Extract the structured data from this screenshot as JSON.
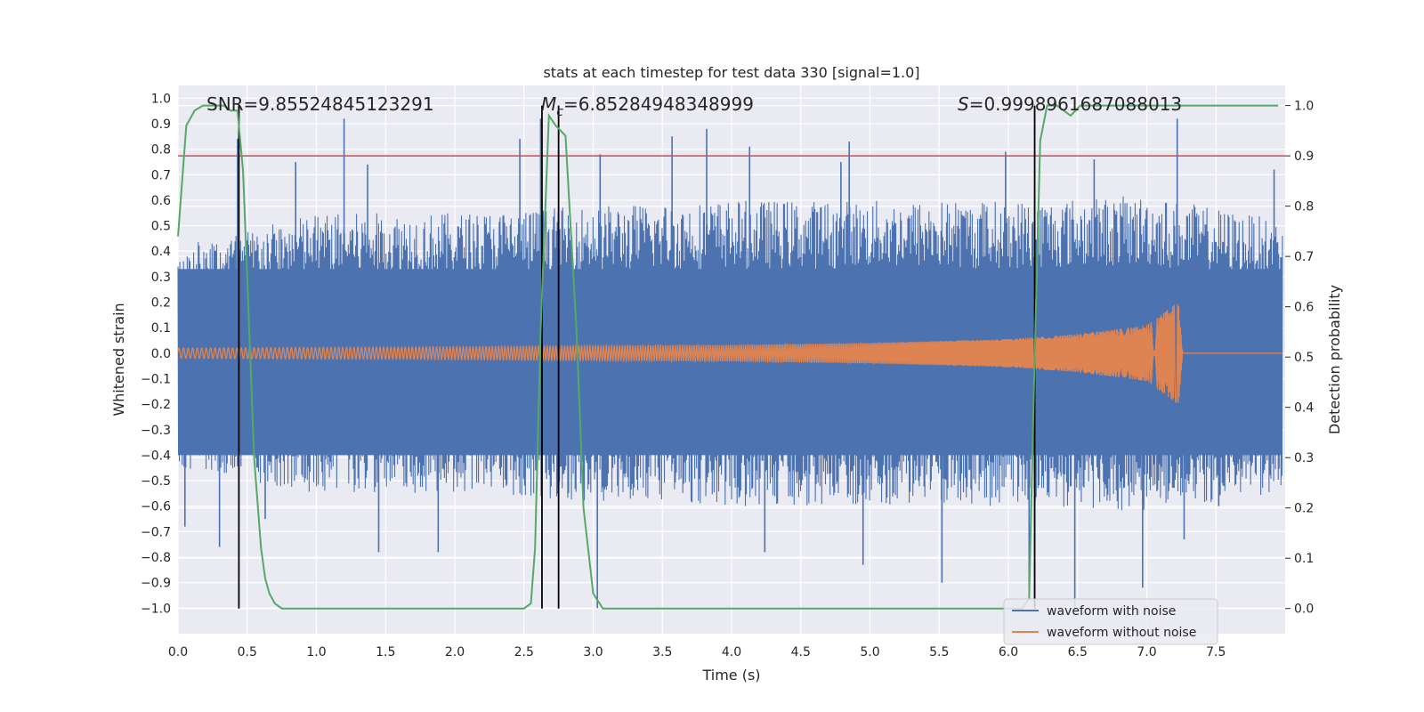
{
  "chart_data": {
    "type": "line",
    "title": "stats at each timestep for test data 330 [signal=1.0]",
    "xlabel": "Time (s)",
    "ylabel": "Whitened strain",
    "y2label": "Detection probability",
    "xlim": [
      0.0,
      8.0
    ],
    "ylim": [
      -1.1,
      1.05
    ],
    "y2lim": [
      -0.05,
      1.04
    ],
    "xticks": [
      0.0,
      0.5,
      1.0,
      1.5,
      2.0,
      2.5,
      3.0,
      3.5,
      4.0,
      4.5,
      5.0,
      5.5,
      6.0,
      6.5,
      7.0,
      7.5
    ],
    "xtick_labels": [
      "0.0",
      "0.5",
      "1.0",
      "1.5",
      "2.0",
      "2.5",
      "3.0",
      "3.5",
      "4.0",
      "4.5",
      "5.0",
      "5.5",
      "6.0",
      "6.5",
      "7.0",
      "7.5"
    ],
    "yticks": [
      -1.0,
      -0.9,
      -0.8,
      -0.7,
      -0.6,
      -0.5,
      -0.4,
      -0.3,
      -0.2,
      -0.1,
      0.0,
      0.1,
      0.2,
      0.3,
      0.4,
      0.5,
      0.6,
      0.7,
      0.8,
      0.9,
      1.0
    ],
    "ytick_labels": [
      "−1.0",
      "−0.9",
      "−0.8",
      "−0.7",
      "−0.6",
      "−0.5",
      "−0.4",
      "−0.3",
      "−0.2",
      "−0.1",
      "0.0",
      "0.1",
      "0.2",
      "0.3",
      "0.4",
      "0.5",
      "0.6",
      "0.7",
      "0.8",
      "0.9",
      "1.0"
    ],
    "y2ticks": [
      0.0,
      0.1,
      0.2,
      0.3,
      0.4,
      0.5,
      0.6,
      0.7,
      0.8,
      0.9,
      1.0
    ],
    "y2tick_labels": [
      "0.0",
      "0.1",
      "0.2",
      "0.3",
      "0.4",
      "0.5",
      "0.6",
      "0.7",
      "0.8",
      "0.9",
      "1.0"
    ],
    "grid": true,
    "threshold_line": {
      "y2": 0.9,
      "color": "#c44e52"
    },
    "vertical_markers": [
      0.44,
      2.63,
      2.75,
      6.19
    ],
    "annotations": [
      {
        "text": "SNR=9.85524845123291"
      },
      {
        "text_prefix": "M",
        "text_sub": "c",
        "text_suffix": "=6.85284948348999"
      },
      {
        "text_prefix": "S",
        "text_suffix": "=0.9998961687088013"
      }
    ],
    "series": [
      {
        "name": "waveform with noise",
        "color": "#4c72b0",
        "description": "noisy whitened strain, roughly within −1.0 to 0.92",
        "envelope": {
          "x": [
            0.0,
            1.0,
            2.0,
            3.0,
            4.0,
            5.0,
            6.0,
            7.0,
            7.98
          ],
          "upper_typical": [
            0.42,
            0.55,
            0.55,
            0.58,
            0.6,
            0.6,
            0.6,
            0.62,
            0.52
          ],
          "lower_typical": [
            -0.45,
            -0.55,
            -0.55,
            -0.58,
            -0.6,
            -0.6,
            -0.6,
            -0.62,
            -0.55
          ]
        },
        "peaks": [
          {
            "x": 0.05,
            "y": -0.68
          },
          {
            "x": 0.3,
            "y": -0.76
          },
          {
            "x": 0.43,
            "y": 0.84
          },
          {
            "x": 0.63,
            "y": -0.65
          },
          {
            "x": 0.85,
            "y": 0.75
          },
          {
            "x": 1.2,
            "y": 0.92
          },
          {
            "x": 1.37,
            "y": 0.74
          },
          {
            "x": 1.45,
            "y": -0.78
          },
          {
            "x": 1.88,
            "y": -0.78
          },
          {
            "x": 2.47,
            "y": 0.84
          },
          {
            "x": 2.62,
            "y": 0.92
          },
          {
            "x": 3.03,
            "y": -1.0
          },
          {
            "x": 3.05,
            "y": 0.78
          },
          {
            "x": 3.57,
            "y": 0.85
          },
          {
            "x": 3.82,
            "y": 0.88
          },
          {
            "x": 4.13,
            "y": 0.81
          },
          {
            "x": 4.24,
            "y": -0.78
          },
          {
            "x": 4.79,
            "y": 0.75
          },
          {
            "x": 4.85,
            "y": 0.83
          },
          {
            "x": 4.95,
            "y": -0.83
          },
          {
            "x": 5.52,
            "y": -0.9
          },
          {
            "x": 5.98,
            "y": 0.79
          },
          {
            "x": 6.15,
            "y": -0.93
          },
          {
            "x": 6.48,
            "y": -1.0
          },
          {
            "x": 6.62,
            "y": 0.76
          },
          {
            "x": 6.97,
            "y": -0.92
          },
          {
            "x": 7.22,
            "y": 0.92
          },
          {
            "x": 7.27,
            "y": -0.73
          },
          {
            "x": 7.52,
            "y": -0.6
          },
          {
            "x": 7.92,
            "y": 0.72
          }
        ]
      },
      {
        "name": "waveform without noise",
        "color": "#dd8452",
        "description": "chirp: amplitude grows from ~0.02 to ~0.2 while frequency rises, merges at t≈7.23 s, then ring-down to 0",
        "amplitude": {
          "x": [
            0.0,
            2.0,
            4.0,
            5.0,
            6.0,
            6.5,
            7.0,
            7.2,
            7.23,
            7.26
          ],
          "y": [
            0.02,
            0.025,
            0.032,
            0.04,
            0.055,
            0.075,
            0.11,
            0.19,
            0.2,
            0.0
          ]
        },
        "merger_time": 7.23
      },
      {
        "name": "detection probability",
        "color": "#55a868",
        "axis": "right",
        "x": [
          0.0,
          0.06,
          0.12,
          0.18,
          0.25,
          0.33,
          0.38,
          0.43,
          0.47,
          0.5,
          0.55,
          0.6,
          0.63,
          0.66,
          0.7,
          0.75,
          1.0,
          2.0,
          2.5,
          2.55,
          2.58,
          2.62,
          2.68,
          2.73,
          2.8,
          2.88,
          2.93,
          3.0,
          3.07,
          3.12,
          6.1,
          6.15,
          6.19,
          6.23,
          6.28,
          6.35,
          6.45,
          6.52,
          6.6,
          7.0,
          7.95
        ],
        "y": [
          0.74,
          0.96,
          0.99,
          1.0,
          1.0,
          1.0,
          0.99,
          0.99,
          0.87,
          0.66,
          0.3,
          0.12,
          0.06,
          0.03,
          0.01,
          0.0,
          0.0,
          0.0,
          0.0,
          0.01,
          0.12,
          0.55,
          0.98,
          0.96,
          0.94,
          0.55,
          0.2,
          0.03,
          0.0,
          0.0,
          0.0,
          0.02,
          0.5,
          0.93,
          1.0,
          1.0,
          0.98,
          1.0,
          1.0,
          1.0,
          1.0
        ]
      }
    ],
    "legend": {
      "location": "lower-right",
      "entries": [
        "waveform with noise",
        "waveform without noise"
      ]
    }
  }
}
